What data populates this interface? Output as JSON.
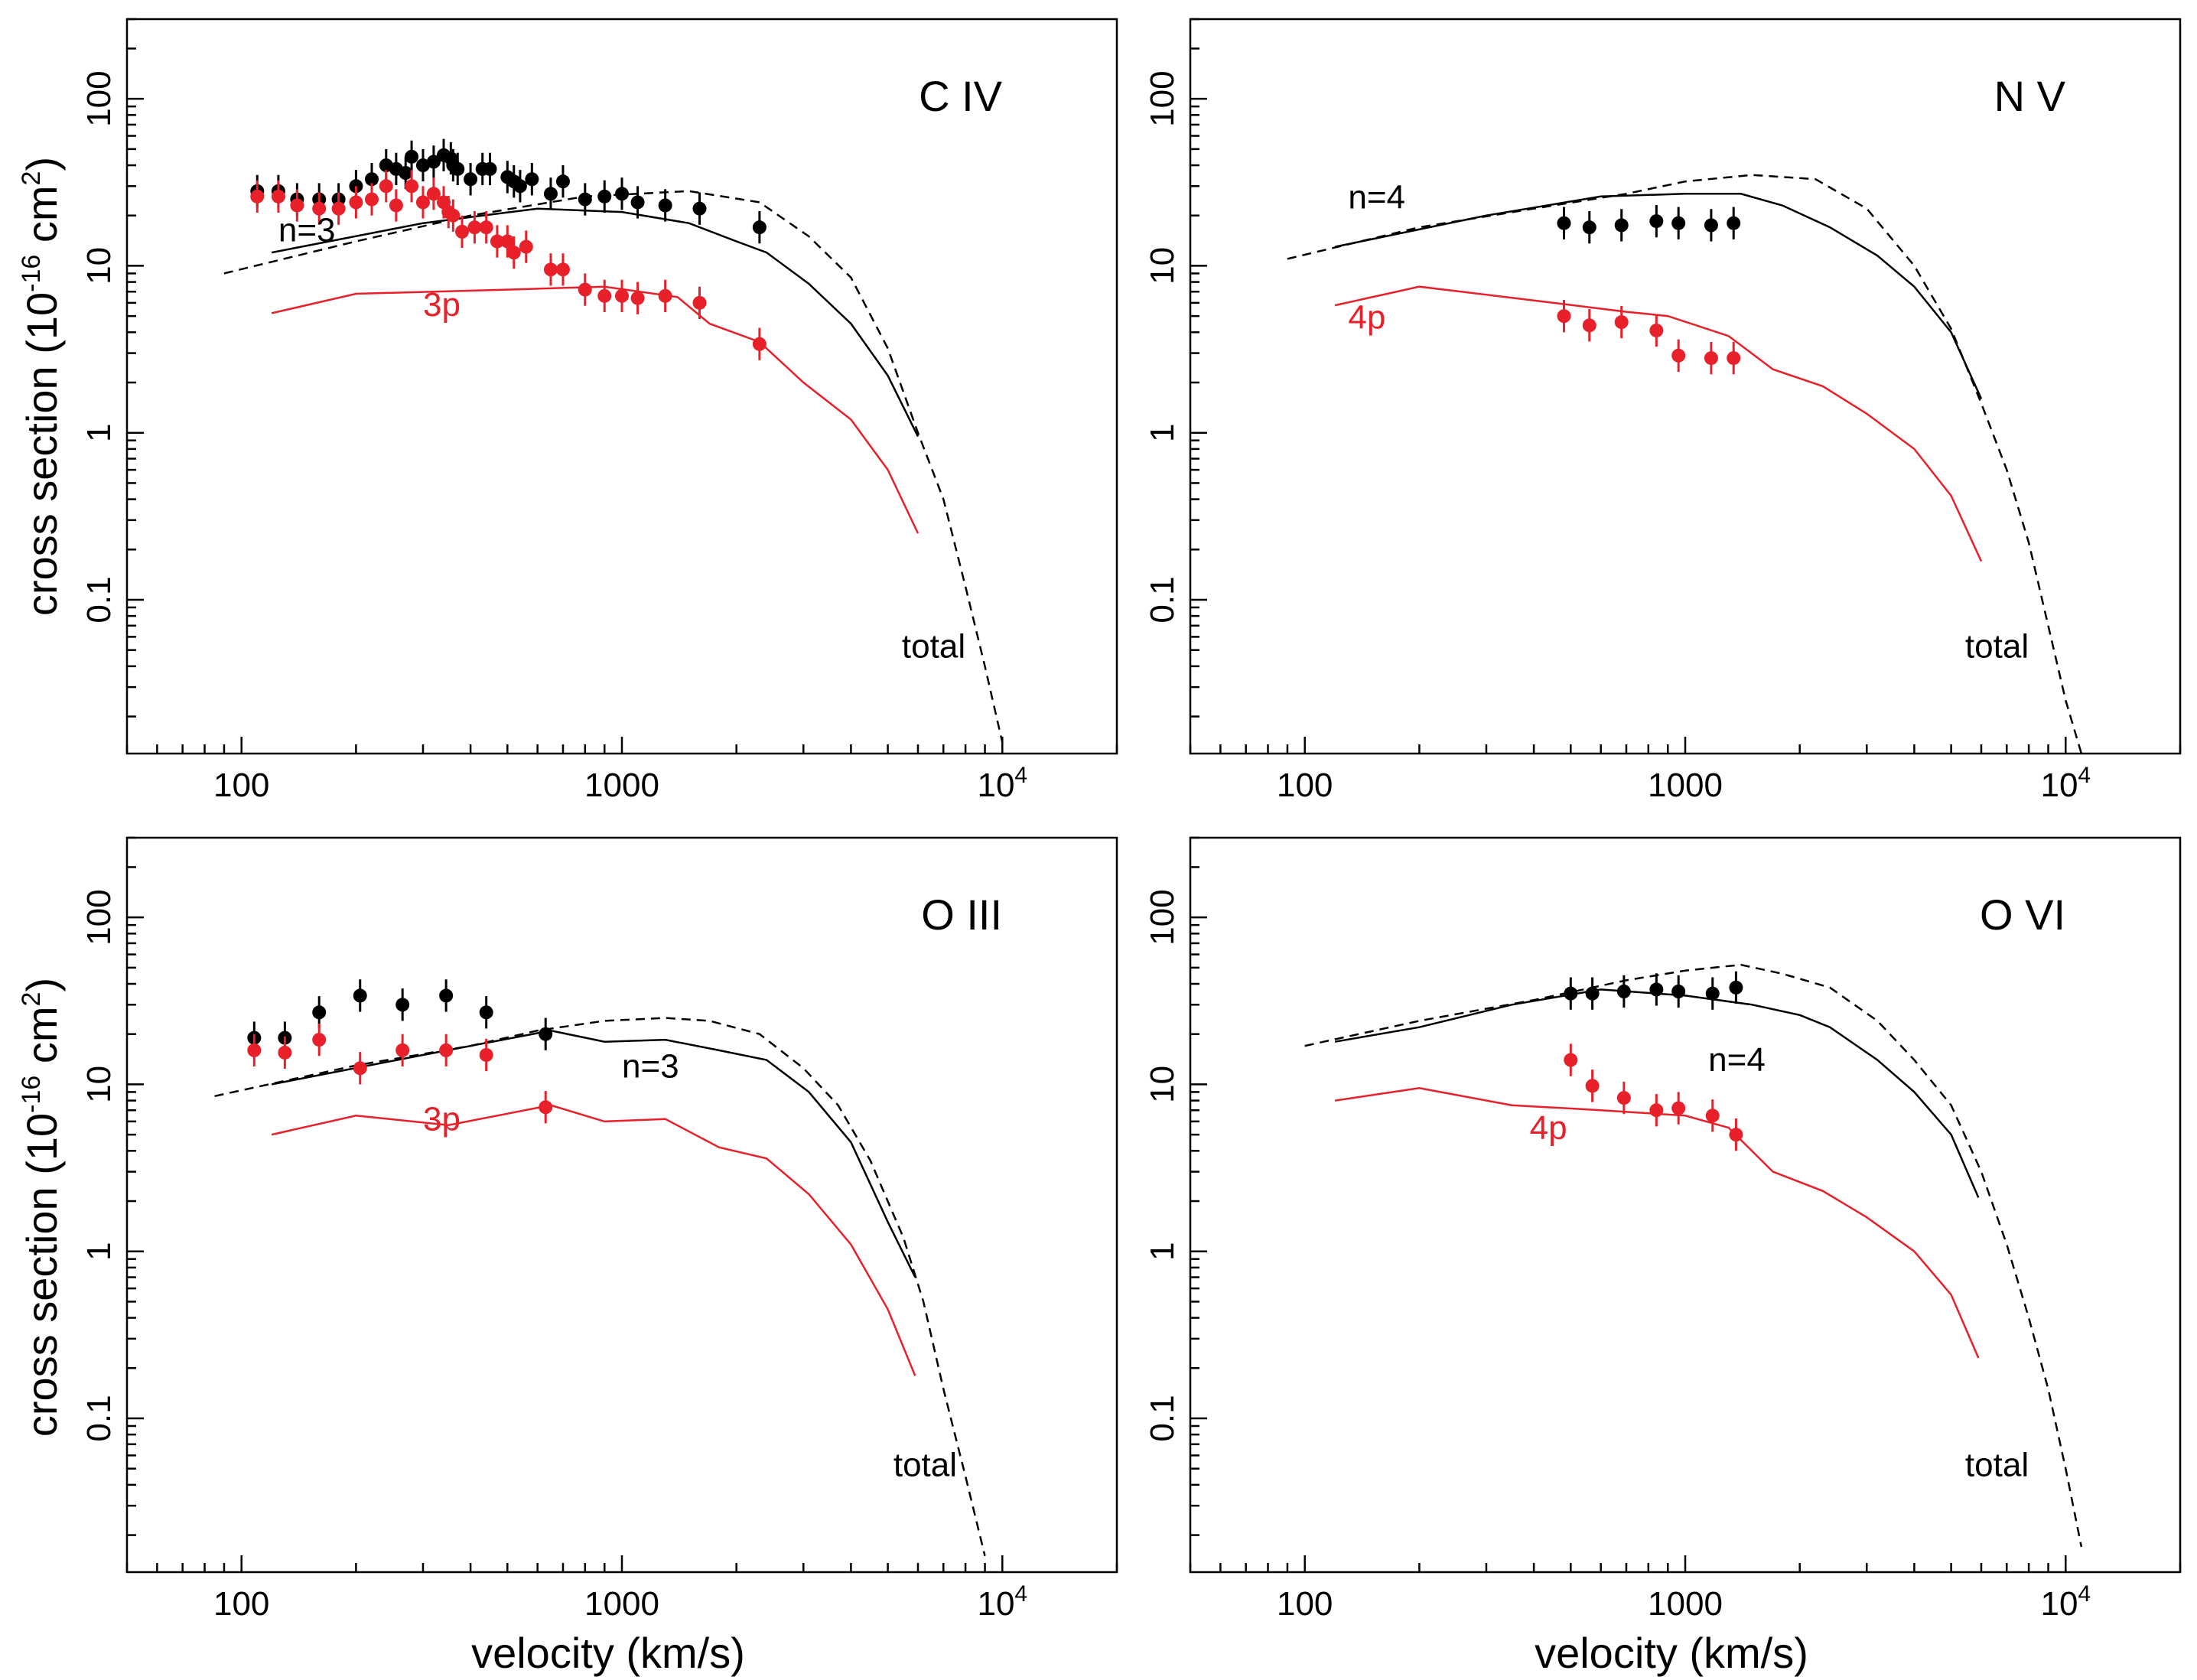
{
  "colors": {
    "total": "#000000",
    "n_level": "#000000",
    "p_level": "#e8202a"
  },
  "axes": {
    "xlabel": "velocity (km/s)",
    "ylabel_prefix": "cross section (10",
    "ylabel_exp": "-16",
    "ylabel_mid": " cm",
    "ylabel_sup": "2",
    "ylabel_suffix": ")",
    "xscale": "log",
    "yscale": "log",
    "xlim": [
      50,
      20000
    ],
    "ylim": [
      0.012,
      300
    ],
    "x_ticks": [
      {
        "value": 100,
        "label": "100"
      },
      {
        "value": 1000,
        "label": "1000"
      },
      {
        "value": 10000,
        "label": "10",
        "sup": "4"
      }
    ],
    "y_ticks": [
      {
        "value": 0.1,
        "label": "0.1"
      },
      {
        "value": 1,
        "label": "1"
      },
      {
        "value": 10,
        "label": "10"
      },
      {
        "value": 100,
        "label": "100"
      }
    ]
  },
  "chart_data": [
    {
      "type": "line",
      "title": "C IV",
      "labels": {
        "n": "n=3",
        "p": "3p",
        "total": "total"
      },
      "label_positions": {
        "n": [
          125,
          14
        ],
        "p": [
          300,
          5
        ],
        "total": [
          8000,
          0.045
        ]
      },
      "series": [
        {
          "name": "total",
          "style": "dashed",
          "x": [
            90,
            200,
            400,
            800,
            1500,
            2300,
            3100,
            4000,
            5000,
            6000,
            7000,
            8000,
            9000,
            10000
          ],
          "y": [
            9,
            14,
            20,
            26,
            28,
            24,
            15,
            8.5,
            3.2,
            1.0,
            0.4,
            0.12,
            0.04,
            0.014
          ]
        },
        {
          "name": "n=3",
          "style": "solid",
          "x": [
            120,
            300,
            600,
            1000,
            1500,
            2000,
            2400,
            3100,
            4000,
            5000,
            6000
          ],
          "y": [
            12,
            18,
            22,
            21,
            18,
            14,
            12,
            7.8,
            4.5,
            2.2,
            0.95
          ]
        },
        {
          "name": "3p",
          "style": "solid",
          "x": [
            120,
            200,
            500,
            900,
            1400,
            1700,
            2300,
            3000,
            4000,
            5000,
            6000
          ],
          "y": [
            5.2,
            6.8,
            7.2,
            7.5,
            6.5,
            4.5,
            3.5,
            2.0,
            1.2,
            0.6,
            0.25
          ]
        },
        {
          "name": "n=3 data",
          "style": "points",
          "x": [
            110,
            125,
            140,
            160,
            180,
            200,
            220,
            240,
            255,
            270,
            280,
            300,
            320,
            340,
            355,
            360,
            370,
            400,
            430,
            450,
            500,
            520,
            540,
            580,
            650,
            700,
            800,
            900,
            1000,
            1100,
            1300,
            1600,
            2300
          ],
          "y": [
            28,
            28,
            25,
            25,
            25,
            30,
            33,
            40,
            38,
            36,
            45,
            40,
            42,
            46,
            44,
            40,
            38,
            33,
            38,
            38,
            34,
            32,
            30,
            33,
            27,
            32,
            25,
            26,
            27,
            24,
            23,
            22,
            17
          ]
        },
        {
          "name": "3p data",
          "style": "points",
          "x": [
            110,
            125,
            140,
            160,
            180,
            200,
            220,
            240,
            255,
            280,
            300,
            320,
            340,
            350,
            360,
            380,
            410,
            440,
            470,
            500,
            520,
            560,
            650,
            700,
            800,
            900,
            1000,
            1100,
            1300,
            1600,
            2300
          ],
          "y": [
            26,
            26,
            23,
            22,
            22,
            24,
            25,
            30,
            23,
            30,
            24,
            27,
            24,
            21,
            20,
            16,
            17,
            17,
            14,
            14,
            12,
            13,
            9.5,
            9.5,
            7.2,
            6.6,
            6.6,
            6.4,
            6.6,
            6.0,
            3.4
          ]
        }
      ]
    },
    {
      "type": "line",
      "title": "N V",
      "labels": {
        "n": "n=4",
        "p": "4p",
        "total": "total"
      },
      "label_positions": {
        "n": [
          130,
          22
        ],
        "p": [
          130,
          4.2
        ],
        "total": [
          8000,
          0.045
        ]
      },
      "series": [
        {
          "name": "total",
          "style": "dashed",
          "x": [
            90,
            200,
            400,
            700,
            1000,
            1500,
            2200,
            3000,
            4000,
            5000,
            6000,
            7000,
            8000,
            9000,
            10000,
            11000
          ],
          "y": [
            11,
            17,
            22,
            27,
            32,
            35,
            33,
            22,
            10,
            4.2,
            1.5,
            0.6,
            0.22,
            0.07,
            0.025,
            0.012
          ]
        },
        {
          "name": "n=4",
          "style": "solid",
          "x": [
            120,
            300,
            600,
            1000,
            1400,
            1800,
            2400,
            3200,
            4000,
            5000,
            6000
          ],
          "y": [
            13,
            20,
            26,
            27,
            27,
            23,
            17,
            11.5,
            7.5,
            4.0,
            1.6
          ]
        },
        {
          "name": "4p",
          "style": "solid",
          "x": [
            120,
            200,
            400,
            700,
            900,
            1300,
            1700,
            2300,
            3000,
            4000,
            5000,
            6000
          ],
          "y": [
            5.8,
            7.5,
            6.2,
            5.3,
            5.0,
            3.8,
            2.4,
            1.9,
            1.3,
            0.8,
            0.42,
            0.17
          ]
        },
        {
          "name": "n=4 data",
          "style": "points",
          "x": [
            480,
            560,
            680,
            840,
            960,
            1170,
            1340
          ],
          "y": [
            18,
            17,
            17.5,
            18.5,
            18,
            17.5,
            18
          ]
        },
        {
          "name": "4p data",
          "style": "points",
          "x": [
            480,
            560,
            680,
            840,
            960,
            1170,
            1340
          ],
          "y": [
            5.0,
            4.4,
            4.6,
            4.1,
            2.9,
            2.8,
            2.8
          ]
        }
      ]
    },
    {
      "type": "line",
      "title": "O III",
      "labels": {
        "n": "n=3",
        "p": "3p",
        "total": "total"
      },
      "label_positions": {
        "n": [
          1000,
          11
        ],
        "p": [
          300,
          5.3
        ],
        "total": [
          7600,
          0.045
        ]
      },
      "series": [
        {
          "name": "total",
          "style": "dashed",
          "x": [
            85,
            200,
            400,
            600,
            900,
            1300,
            1700,
            2300,
            3000,
            3700,
            4500,
            5500,
            6200,
            7000,
            8000,
            9000
          ],
          "y": [
            8.5,
            13,
            17,
            21,
            24,
            25,
            24,
            20,
            12.5,
            7.5,
            3.5,
            1.2,
            0.5,
            0.15,
            0.045,
            0.015
          ]
        },
        {
          "name": "n=3",
          "style": "solid",
          "x": [
            120,
            300,
            650,
            900,
            1300,
            1800,
            2400,
            3100,
            4000,
            5000,
            5900
          ],
          "y": [
            10,
            15,
            21,
            18,
            18.5,
            16,
            14,
            9,
            4.5,
            1.5,
            0.7
          ]
        },
        {
          "name": "3p",
          "style": "solid",
          "x": [
            120,
            200,
            350,
            650,
            900,
            1300,
            1800,
            2400,
            3100,
            4000,
            5000,
            5900
          ],
          "y": [
            5.0,
            6.5,
            5.7,
            7.5,
            6.0,
            6.2,
            4.2,
            3.6,
            2.2,
            1.1,
            0.45,
            0.18
          ]
        },
        {
          "name": "n=3 data",
          "style": "points",
          "x": [
            108,
            130,
            160,
            205,
            265,
            345,
            440,
            630
          ],
          "y": [
            19,
            19,
            27,
            34,
            30,
            34,
            27,
            20
          ]
        },
        {
          "name": "3p data",
          "style": "points",
          "x": [
            108,
            130,
            160,
            205,
            265,
            345,
            440,
            630
          ],
          "y": [
            16,
            15.5,
            18.5,
            12.5,
            16,
            16,
            15,
            7.3
          ]
        }
      ]
    },
    {
      "type": "line",
      "title": "O VI",
      "labels": {
        "n": "n=4",
        "p": "4p",
        "total": "total"
      },
      "label_positions": {
        "n": [
          1150,
          12
        ],
        "p": [
          390,
          4.7
        ],
        "total": [
          8000,
          0.045
        ]
      },
      "series": [
        {
          "name": "total",
          "style": "dashed",
          "x": [
            100,
            200,
            400,
            700,
            1000,
            1400,
            1800,
            2400,
            3200,
            4000,
            5000,
            6000,
            7000,
            8000,
            9000,
            10000,
            11000
          ],
          "y": [
            17,
            24,
            32,
            42,
            48,
            52,
            46,
            38,
            24,
            14,
            7.5,
            3.0,
            1.1,
            0.4,
            0.15,
            0.05,
            0.017
          ]
        },
        {
          "name": "n=4",
          "style": "solid",
          "x": [
            120,
            200,
            350,
            600,
            1000,
            1500,
            2000,
            2400,
            3200,
            4000,
            5000,
            5900
          ],
          "y": [
            18,
            22,
            30,
            37,
            34,
            30,
            26,
            22,
            14,
            9,
            5.0,
            2.1
          ]
        },
        {
          "name": "4p",
          "style": "solid",
          "x": [
            120,
            200,
            350,
            600,
            1000,
            1300,
            1700,
            2300,
            3000,
            4000,
            5000,
            5900
          ],
          "y": [
            8.0,
            9.5,
            7.5,
            7.0,
            6.5,
            5.5,
            3.0,
            2.3,
            1.6,
            1.0,
            0.55,
            0.23
          ]
        },
        {
          "name": "n=4 data",
          "style": "points",
          "x": [
            500,
            570,
            690,
            840,
            960,
            1180,
            1360
          ],
          "y": [
            35,
            35,
            36,
            37,
            36,
            35,
            38
          ]
        },
        {
          "name": "4p data",
          "style": "points",
          "x": [
            500,
            570,
            690,
            840,
            960,
            1180,
            1360
          ],
          "y": [
            14,
            9.8,
            8.3,
            7.0,
            7.2,
            6.5,
            5.0
          ]
        }
      ]
    }
  ]
}
